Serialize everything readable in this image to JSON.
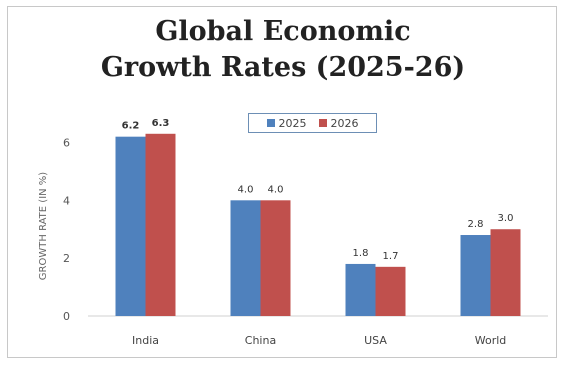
{
  "chart_data": {
    "type": "bar",
    "title_lines": [
      "Global Economic",
      "Growth Rates (2025-26)"
    ],
    "ylabel": "GROWTH RATE (IN %)",
    "xlabel": "",
    "categories": [
      "India",
      "China",
      "USA",
      "World"
    ],
    "series": [
      {
        "name": "2025",
        "color": "#4f81bd",
        "values": [
          6.2,
          4.0,
          1.8,
          2.8
        ],
        "labels": [
          "6.2",
          "4.0",
          "1.8",
          "2.8"
        ]
      },
      {
        "name": "2026",
        "color": "#c0504d",
        "values": [
          6.3,
          4.0,
          1.7,
          3.0
        ],
        "labels": [
          "6.3",
          "4.0",
          "1.7",
          "3.0"
        ]
      }
    ],
    "ylim": [
      0,
      6.5
    ],
    "yticks": [
      0,
      2,
      4,
      6
    ],
    "ytick_labels": [
      "0",
      "2",
      "4",
      "6"
    ],
    "grid": false,
    "legend_position": "top-center"
  }
}
